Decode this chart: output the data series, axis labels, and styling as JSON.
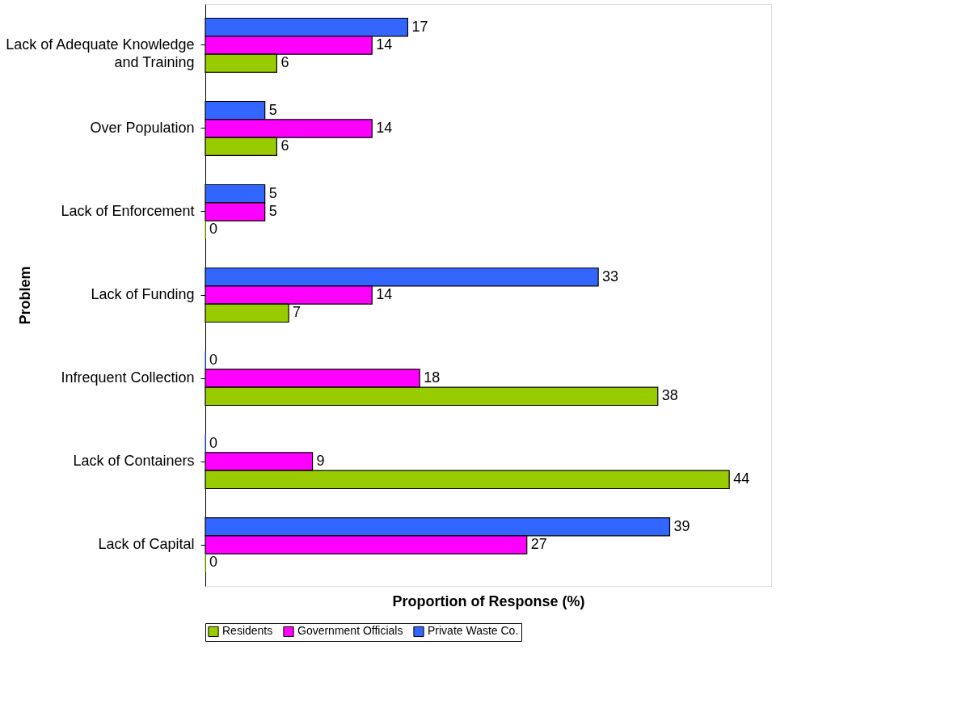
{
  "chart_data": {
    "type": "bar",
    "orientation": "horizontal",
    "xlabel": "Proportion of Response (%)",
    "ylabel": "Problem",
    "categories": [
      "Lack of Adequate Knowledge and Training",
      "Over Population",
      "Lack of Enforcement",
      "Lack of Funding",
      "Infrequent Collection",
      "Lack of Containers",
      "Lack of Capital"
    ],
    "series": [
      {
        "name": "Private Waste Co.",
        "color": "#3366ff",
        "values": [
          17,
          5,
          5,
          33,
          0,
          0,
          39
        ]
      },
      {
        "name": "Government Officials",
        "color": "#ff00ff",
        "values": [
          14,
          14,
          5,
          14,
          18,
          9,
          27
        ]
      },
      {
        "name": "Residents",
        "color": "#99cc00",
        "values": [
          6,
          6,
          0,
          7,
          38,
          44,
          0
        ]
      }
    ],
    "data_labels": true,
    "legend": "bottom",
    "tick_labels": "y"
  }
}
